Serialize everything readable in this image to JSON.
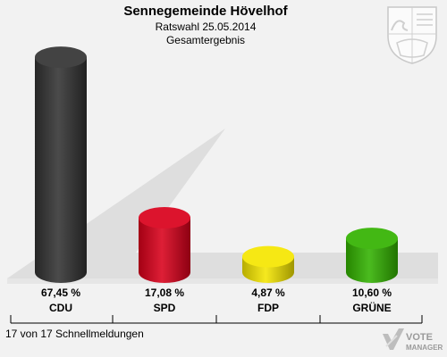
{
  "header": {
    "title": "Sennegemeinde Hövelhof",
    "subtitle": "Ratswahl 25.05.2014",
    "subtitle2": "Gesamtergebnis"
  },
  "chart_data": {
    "type": "bar",
    "categories": [
      "CDU",
      "SPD",
      "FDP",
      "GRÜNE"
    ],
    "values": [
      67.45,
      17.08,
      4.87,
      10.6
    ],
    "value_labels": [
      "67,45 %",
      "17,08 %",
      "4,87 %",
      "10,60 %"
    ],
    "colors": [
      "#333333",
      "#d9001b",
      "#f5e600",
      "#33b200"
    ],
    "ylim": [
      0,
      70
    ],
    "grid": false
  },
  "footer": {
    "text": "17 von 17 Schnellmeldungen",
    "logo_line1": "VOTE",
    "logo_line2": "MANAGER"
  },
  "icons": {
    "crest": "nrw-crest-icon",
    "logo": "votemanager-logo-icon"
  }
}
